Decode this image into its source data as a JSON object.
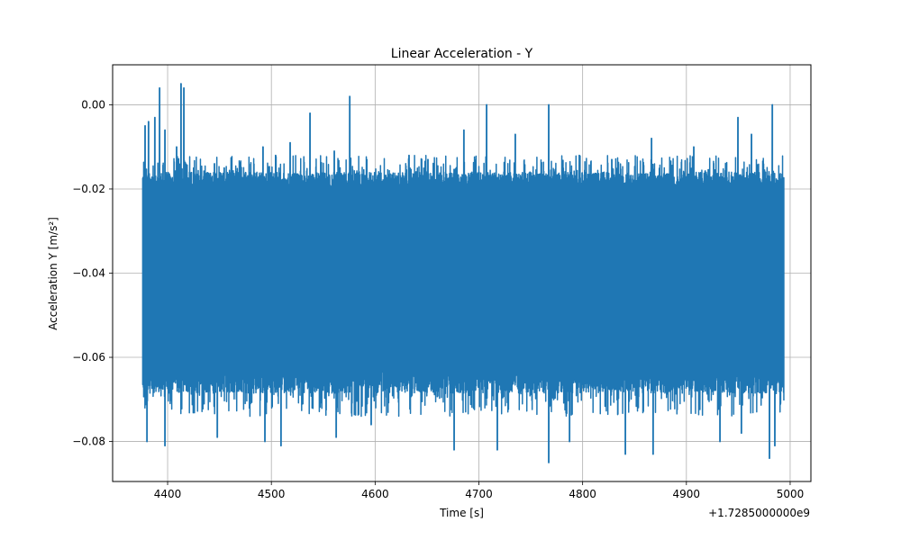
{
  "chart_data": {
    "type": "line",
    "title": "Linear Acceleration - Y",
    "xlabel": "Time [s]",
    "ylabel": "Acceleration Y [m/s²]",
    "x_offset_label": "+1.7285000000e9",
    "xlim": [
      4347,
      5020
    ],
    "ylim": [
      -0.0895,
      0.0095
    ],
    "grid": true,
    "colors": {
      "line": "#1f77b4",
      "grid": "#b0b0b0",
      "axes": "#000000"
    },
    "x_ticks": [
      {
        "value": 4400,
        "label": "4400"
      },
      {
        "value": 4500,
        "label": "4500"
      },
      {
        "value": 4600,
        "label": "4600"
      },
      {
        "value": 4700,
        "label": "4700"
      },
      {
        "value": 4800,
        "label": "4800"
      },
      {
        "value": 4900,
        "label": "4900"
      },
      {
        "value": 5000,
        "label": "5000"
      }
    ],
    "y_ticks": [
      {
        "value": 0.0,
        "label": "0.00"
      },
      {
        "value": -0.02,
        "label": "−0.02"
      },
      {
        "value": -0.04,
        "label": "−0.04"
      },
      {
        "value": -0.06,
        "label": "−0.06"
      },
      {
        "value": -0.08,
        "label": "−0.08"
      }
    ],
    "series": [
      {
        "x_range": [
          4376,
          4994
        ],
        "band_upper": -0.02,
        "band_lower": -0.063,
        "max_points": [
          [
            4378,
            -0.005
          ],
          [
            4382,
            -0.004
          ],
          [
            4388,
            -0.003
          ],
          [
            4392,
            0.004
          ],
          [
            4397,
            -0.006
          ],
          [
            4409,
            -0.01
          ],
          [
            4413,
            0.005
          ],
          [
            4416,
            0.004
          ],
          [
            4425,
            -0.015
          ],
          [
            4445,
            -0.014
          ],
          [
            4455,
            -0.015
          ],
          [
            4492,
            -0.01
          ],
          [
            4504,
            -0.012
          ],
          [
            4518,
            -0.009
          ],
          [
            4537,
            -0.002
          ],
          [
            4561,
            -0.011
          ],
          [
            4575,
            0.002
          ],
          [
            4592,
            -0.013
          ],
          [
            4633,
            -0.012
          ],
          [
            4651,
            -0.013
          ],
          [
            4686,
            -0.006
          ],
          [
            4707,
            0.0
          ],
          [
            4735,
            -0.007
          ],
          [
            4767,
            0.0
          ],
          [
            4797,
            -0.012
          ],
          [
            4828,
            -0.013
          ],
          [
            4866,
            -0.008
          ],
          [
            4907,
            -0.01
          ],
          [
            4950,
            -0.003
          ],
          [
            4963,
            -0.007
          ],
          [
            4983,
            0.0
          ],
          [
            4993,
            -0.03
          ]
        ],
        "min_points": [
          [
            4380,
            -0.08
          ],
          [
            4397,
            -0.081
          ],
          [
            4448,
            -0.079
          ],
          [
            4494,
            -0.08
          ],
          [
            4509,
            -0.081
          ],
          [
            4562,
            -0.079
          ],
          [
            4596,
            -0.076
          ],
          [
            4676,
            -0.082
          ],
          [
            4718,
            -0.082
          ],
          [
            4767,
            -0.085
          ],
          [
            4787,
            -0.08
          ],
          [
            4841,
            -0.083
          ],
          [
            4868,
            -0.083
          ],
          [
            4932,
            -0.08
          ],
          [
            4953,
            -0.078
          ],
          [
            4980,
            -0.084
          ],
          [
            4985,
            -0.081
          ]
        ],
        "typical_range": [
          -0.074,
          -0.012
        ]
      }
    ]
  }
}
